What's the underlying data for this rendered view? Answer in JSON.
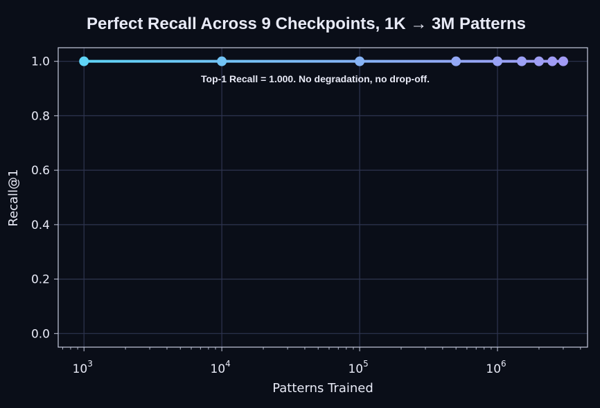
{
  "chart_data": {
    "type": "line",
    "title": "Perfect Recall Across 9 Checkpoints, 1K → 3M Patterns",
    "xlabel": "Patterns Trained",
    "ylabel": "Recall@1",
    "x_scale": "log",
    "xlim": [
      650,
      4500000
    ],
    "ylim": [
      -0.05,
      1.05
    ],
    "grid": true,
    "x_ticks": [
      {
        "base": "10",
        "exp": "3",
        "value": 1000
      },
      {
        "base": "10",
        "exp": "4",
        "value": 10000
      },
      {
        "base": "10",
        "exp": "5",
        "value": 100000
      },
      {
        "base": "10",
        "exp": "6",
        "value": 1000000
      }
    ],
    "y_ticks": [
      "0.0",
      "0.2",
      "0.4",
      "0.6",
      "0.8",
      "1.0"
    ],
    "series": [
      {
        "x": [
          1000,
          10000,
          100000,
          500000,
          1000000,
          1500000,
          2000000,
          2500000,
          3000000
        ],
        "y": [
          1.0,
          1.0,
          1.0,
          1.0,
          1.0,
          1.0,
          1.0,
          1.0,
          1.0
        ]
      }
    ],
    "annotation": "Top-1 Recall = 1.000. No degradation, no drop-off.",
    "colors": {
      "background": "#0a0e18",
      "grid": "#2e3550",
      "axes": "#c8cde0",
      "text": "#e8eaf6",
      "gradient_start": "#5fd4f6",
      "gradient_end": "#a29bf5"
    }
  }
}
